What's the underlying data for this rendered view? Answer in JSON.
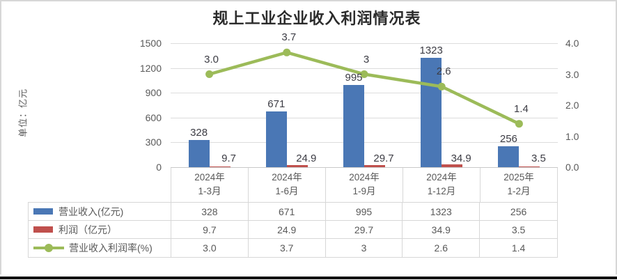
{
  "header": {
    "title": "规上工业企业收入利润情况表"
  },
  "axis_unit_label": "单位：亿元",
  "colors": {
    "revenue_bar": "#4a77b5",
    "profit_bar": "#c0504d",
    "margin_line": "#9cbb59",
    "grid": "#dcdcdc",
    "table_border": "#d7d7d7",
    "tick_text": "#595959",
    "data_label_text": "#3c3c44"
  },
  "chart_data": {
    "type": "bar",
    "subtype": "combo bar + line (secondary axis)",
    "title": "规上工业企业收入利润情况表",
    "categories": [
      "2024年 1-3月",
      "2024年 1-6月",
      "2024年 1-9月",
      "2024年 1-12月",
      "2025年 1-2月"
    ],
    "category_lines": [
      [
        "2024年",
        "1-3月"
      ],
      [
        "2024年",
        "1-6月"
      ],
      [
        "2024年",
        "1-9月"
      ],
      [
        "2024年",
        "1-12月"
      ],
      [
        "2025年",
        "1-2月"
      ]
    ],
    "series": [
      {
        "name": "营业收入(亿元)",
        "type": "bar",
        "axis": "primary",
        "color": "#4a77b5",
        "values": [
          328,
          671,
          995,
          1323,
          256
        ],
        "labels": [
          "328",
          "671",
          "995",
          "1323",
          "256"
        ]
      },
      {
        "name": "利润（亿元）",
        "type": "bar",
        "axis": "primary",
        "color": "#c0504d",
        "values": [
          9.7,
          24.9,
          29.7,
          34.9,
          3.5
        ],
        "labels": [
          "9.7",
          "24.9",
          "29.7",
          "34.9",
          "3.5"
        ]
      },
      {
        "name": "营业收入利润率(%)",
        "type": "line",
        "axis": "secondary",
        "color": "#9cbb59",
        "values": [
          3.0,
          3.7,
          3,
          2.6,
          1.4
        ],
        "labels": [
          "3.0",
          "3.7",
          "3",
          "2.6",
          "1.4"
        ]
      }
    ],
    "primary_axis": {
      "label": "单位：亿元",
      "min": 0,
      "max": 1500,
      "step": 300,
      "ticks": [
        "1500",
        "1200",
        "900",
        "600",
        "300",
        "0"
      ]
    },
    "secondary_axis": {
      "min": 0.0,
      "max": 4.0,
      "step": 1.0,
      "ticks": [
        "4.0",
        "3.0",
        "2.0",
        "1.0",
        "0.0"
      ]
    },
    "grid": true,
    "legend_position": "data table at left of value rows below chart"
  }
}
